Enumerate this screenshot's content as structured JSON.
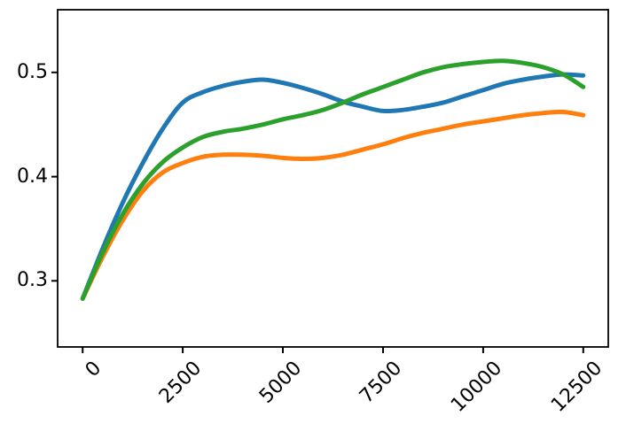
{
  "chart_data": {
    "type": "line",
    "title": "",
    "xlabel": "",
    "ylabel": "",
    "grid": false,
    "legend": "none",
    "background": "#ffffff",
    "axis_color": "#000000",
    "line_width": 5,
    "xlim": [
      -625,
      13125
    ],
    "ylim": [
      0.2366,
      0.5601
    ],
    "xticks": [
      0,
      2500,
      5000,
      7500,
      10000,
      12500
    ],
    "xtick_labels": [
      "0",
      "2500",
      "5000",
      "7500",
      "10000",
      "12500"
    ],
    "xtick_rotation": 45,
    "yticks": [
      0.3,
      0.4,
      0.5
    ],
    "ytick_labels": [
      "0.3",
      "0.4",
      "0.5"
    ],
    "x": [
      0,
      500,
      1000,
      1500,
      2000,
      2500,
      3000,
      3500,
      4000,
      4500,
      5000,
      5500,
      6000,
      6500,
      7000,
      7500,
      8000,
      8500,
      9000,
      9500,
      10000,
      10500,
      11000,
      11500,
      12000,
      12500
    ],
    "series": [
      {
        "name": "blue-curve",
        "color": "#1f77b4",
        "values": [
          0.283,
          0.331,
          0.375,
          0.413,
          0.446,
          0.471,
          0.481,
          0.487,
          0.491,
          0.493,
          0.49,
          0.485,
          0.479,
          0.472,
          0.467,
          0.463,
          0.464,
          0.467,
          0.471,
          0.477,
          0.483,
          0.489,
          0.493,
          0.496,
          0.498,
          0.497
        ]
      },
      {
        "name": "orange-curve",
        "color": "#ff7f0e",
        "values": [
          0.283,
          0.323,
          0.358,
          0.386,
          0.404,
          0.413,
          0.419,
          0.421,
          0.421,
          0.42,
          0.418,
          0.417,
          0.418,
          0.421,
          0.426,
          0.431,
          0.437,
          0.442,
          0.446,
          0.45,
          0.453,
          0.456,
          0.459,
          0.461,
          0.462,
          0.459
        ]
      },
      {
        "name": "green-curve",
        "color": "#2ca02c",
        "values": [
          0.283,
          0.327,
          0.364,
          0.393,
          0.414,
          0.428,
          0.438,
          0.443,
          0.446,
          0.45,
          0.455,
          0.459,
          0.464,
          0.471,
          0.479,
          0.486,
          0.493,
          0.5,
          0.505,
          0.508,
          0.51,
          0.511,
          0.509,
          0.505,
          0.498,
          0.486
        ]
      }
    ]
  }
}
